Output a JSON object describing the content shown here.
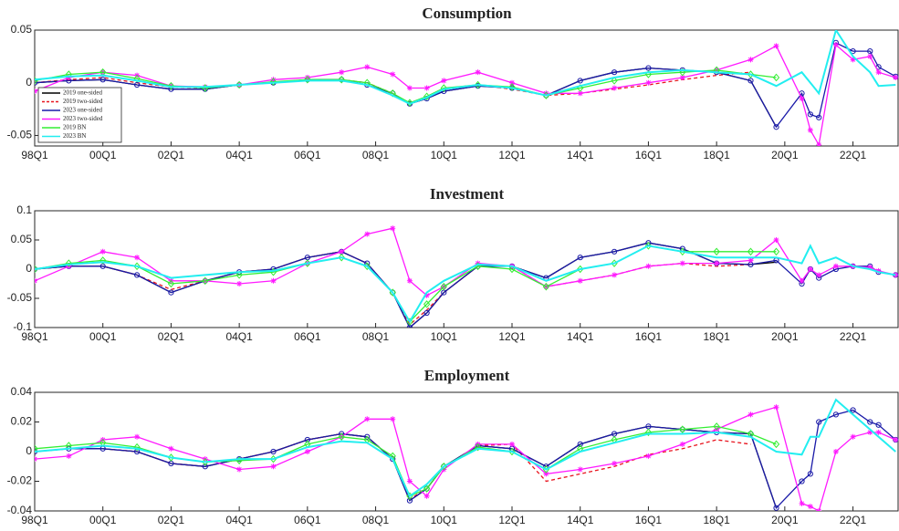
{
  "chart_data": [
    {
      "type": "line",
      "title": "Consumption",
      "legend": "lower left",
      "x": [
        1998,
        1999,
        2000,
        2001,
        2002,
        2003,
        2004,
        2005,
        2006,
        2007,
        2007.75,
        2008.5,
        2009,
        2009.5,
        2010,
        2011,
        2012,
        2013,
        2014,
        2015,
        2016,
        2017,
        2018,
        2019,
        2019.75,
        2020.5,
        2020.75,
        2021,
        2021.5,
        2022,
        2022.5,
        2022.75,
        2023.25
      ],
      "xlim": [
        1998,
        2023.35
      ],
      "xticks": [
        {
          "value": 1998,
          "label": "98Q1"
        },
        {
          "value": 2000,
          "label": "00Q1"
        },
        {
          "value": 2002,
          "label": "02Q1"
        },
        {
          "value": 2004,
          "label": "04Q1"
        },
        {
          "value": 2006,
          "label": "06Q1"
        },
        {
          "value": 2008,
          "label": "08Q1"
        },
        {
          "value": 2010,
          "label": "10Q1"
        },
        {
          "value": 2012,
          "label": "12Q1"
        },
        {
          "value": 2014,
          "label": "14Q1"
        },
        {
          "value": 2016,
          "label": "16Q1"
        },
        {
          "value": 2018,
          "label": "18Q1"
        },
        {
          "value": 2020,
          "label": "20Q1"
        },
        {
          "value": 2022,
          "label": "22Q1"
        }
      ],
      "ylim": [
        -0.06,
        0.05
      ],
      "yticks": [
        -0.05,
        0,
        0.05
      ],
      "series": [
        {
          "name": "2019 one-sided",
          "color": "#000000",
          "marker": "none",
          "dash": false,
          "values": [
            0,
            0.002,
            0.003,
            -0.002,
            -0.006,
            -0.006,
            -0.002,
            0,
            0.003,
            0.003,
            -0.002,
            -0.01,
            -0.02,
            -0.015,
            -0.008,
            -0.003,
            -0.005,
            -0.012,
            0.002,
            0.01,
            0.014,
            0.012,
            0.01,
            0.002,
            -0.042,
            null,
            null,
            null,
            null,
            null,
            null,
            null,
            null
          ]
        },
        {
          "name": "2019 two-sided",
          "color": "#e8141e",
          "marker": "none",
          "dash": true,
          "values": [
            0,
            0.003,
            0.005,
            0,
            -0.004,
            -0.005,
            -0.002,
            0,
            0.002,
            0.003,
            0,
            -0.01,
            -0.02,
            -0.014,
            -0.006,
            -0.002,
            -0.006,
            -0.012,
            -0.01,
            -0.006,
            -0.002,
            0.003,
            0.007,
            0.01,
            null,
            null,
            null,
            null,
            null,
            null,
            null,
            null,
            null
          ]
        },
        {
          "name": "2023 one-sided",
          "color": "#1a1aa8",
          "marker": "circle",
          "dash": false,
          "values": [
            0,
            0.002,
            0.003,
            -0.002,
            -0.006,
            -0.006,
            -0.002,
            0,
            0.003,
            0.003,
            -0.002,
            -0.01,
            -0.02,
            -0.015,
            -0.008,
            -0.003,
            -0.005,
            -0.012,
            0.002,
            0.01,
            0.014,
            0.012,
            0.01,
            0.002,
            -0.042,
            -0.01,
            -0.03,
            -0.033,
            0.038,
            0.03,
            0.03,
            0.015,
            0.006
          ]
        },
        {
          "name": "2023 two-sided",
          "color": "#ff1aff",
          "marker": "star",
          "dash": false,
          "values": [
            -0.008,
            0.005,
            0.01,
            0.007,
            -0.003,
            -0.004,
            -0.002,
            0.003,
            0.005,
            0.01,
            0.015,
            0.008,
            -0.005,
            -0.005,
            0.002,
            0.01,
            0,
            -0.01,
            -0.01,
            -0.005,
            0,
            0.005,
            0.012,
            0.022,
            0.035,
            -0.015,
            -0.045,
            -0.059,
            0.036,
            0.022,
            0.025,
            0.01,
            0.005
          ]
        },
        {
          "name": "2019 BN",
          "color": "#33ee33",
          "marker": "diamond",
          "dash": false,
          "values": [
            0.002,
            0.008,
            0.01,
            0.004,
            -0.003,
            -0.005,
            -0.002,
            0.001,
            0.003,
            0.003,
            0,
            -0.01,
            -0.019,
            -0.013,
            -0.005,
            -0.002,
            -0.004,
            -0.012,
            -0.005,
            0.002,
            0.008,
            0.01,
            0.012,
            0.008,
            0.005,
            null,
            null,
            null,
            null,
            null,
            null,
            null,
            null
          ]
        },
        {
          "name": "2023 BN",
          "color": "#22eef0",
          "marker": "none",
          "dash": false,
          "values": [
            0.003,
            0.006,
            0.007,
            0.002,
            -0.004,
            -0.004,
            -0.002,
            0,
            0.002,
            0.002,
            -0.002,
            -0.012,
            -0.02,
            -0.014,
            -0.006,
            -0.002,
            -0.005,
            -0.012,
            -0.003,
            0.005,
            0.01,
            0.012,
            0.01,
            0.008,
            -0.003,
            0.01,
            0,
            -0.01,
            0.05,
            0.025,
            0.01,
            -0.003,
            -0.002
          ]
        }
      ]
    },
    {
      "type": "line",
      "title": "Investment",
      "x": [
        1998,
        1999,
        2000,
        2001,
        2002,
        2003,
        2004,
        2005,
        2006,
        2007,
        2007.75,
        2008.5,
        2009,
        2009.5,
        2010,
        2011,
        2012,
        2013,
        2014,
        2015,
        2016,
        2017,
        2018,
        2019,
        2019.75,
        2020.5,
        2020.75,
        2021,
        2021.5,
        2022,
        2022.5,
        2022.75,
        2023.25
      ],
      "xlim": [
        1998,
        2023.35
      ],
      "xticks": [
        {
          "value": 1998,
          "label": "98Q1"
        },
        {
          "value": 2000,
          "label": "00Q1"
        },
        {
          "value": 2002,
          "label": "02Q1"
        },
        {
          "value": 2004,
          "label": "04Q1"
        },
        {
          "value": 2006,
          "label": "06Q1"
        },
        {
          "value": 2008,
          "label": "08Q1"
        },
        {
          "value": 2010,
          "label": "10Q1"
        },
        {
          "value": 2012,
          "label": "12Q1"
        },
        {
          "value": 2014,
          "label": "14Q1"
        },
        {
          "value": 2016,
          "label": "16Q1"
        },
        {
          "value": 2018,
          "label": "18Q1"
        },
        {
          "value": 2020,
          "label": "20Q1"
        },
        {
          "value": 2022,
          "label": "22Q1"
        }
      ],
      "ylim": [
        -0.1,
        0.1
      ],
      "yticks": [
        -0.1,
        -0.05,
        0,
        0.05,
        0.1
      ],
      "series": [
        {
          "color": "#000000",
          "marker": "none",
          "dash": false,
          "values": [
            0,
            0.005,
            0.005,
            -0.01,
            -0.04,
            -0.02,
            -0.005,
            0,
            0.02,
            0.03,
            0.01,
            -0.04,
            -0.1,
            -0.075,
            -0.04,
            0.005,
            0.005,
            -0.015,
            0.02,
            0.03,
            0.045,
            0.035,
            0.01,
            0.008,
            0.012,
            null,
            null,
            null,
            null,
            null,
            null,
            null,
            null
          ]
        },
        {
          "color": "#e8141e",
          "marker": "none",
          "dash": true,
          "values": [
            0,
            0.005,
            0.005,
            -0.01,
            -0.035,
            -0.02,
            -0.005,
            0,
            0.02,
            0.03,
            0.01,
            -0.04,
            -0.095,
            -0.07,
            -0.04,
            0.005,
            0.005,
            -0.03,
            -0.02,
            -0.01,
            0.005,
            0.01,
            0.005,
            0.008,
            null,
            null,
            null,
            null,
            null,
            null,
            null,
            null,
            null
          ]
        },
        {
          "color": "#1a1aa8",
          "marker": "circle",
          "dash": false,
          "values": [
            0,
            0.005,
            0.005,
            -0.01,
            -0.04,
            -0.02,
            -0.005,
            0,
            0.02,
            0.03,
            0.01,
            -0.04,
            -0.1,
            -0.075,
            -0.04,
            0.005,
            0.005,
            -0.015,
            0.02,
            0.03,
            0.045,
            0.035,
            0.01,
            0.008,
            0.015,
            -0.025,
            0,
            -0.015,
            0,
            0.005,
            0.005,
            -0.005,
            -0.01
          ]
        },
        {
          "color": "#ff1aff",
          "marker": "star",
          "dash": false,
          "values": [
            -0.02,
            0.005,
            0.03,
            0.02,
            -0.02,
            -0.02,
            -0.025,
            -0.02,
            0.01,
            0.03,
            0.06,
            0.07,
            -0.02,
            -0.045,
            -0.03,
            0.01,
            0.005,
            -0.03,
            -0.02,
            -0.01,
            0.005,
            0.01,
            0.01,
            0.015,
            0.05,
            -0.02,
            0,
            -0.01,
            0.005,
            0.005,
            0.003,
            -0.003,
            -0.01
          ]
        },
        {
          "color": "#33ee33",
          "marker": "diamond",
          "dash": false,
          "values": [
            0,
            0.01,
            0.015,
            0.005,
            -0.025,
            -0.02,
            -0.01,
            -0.005,
            0.01,
            0.02,
            0.005,
            -0.04,
            -0.09,
            -0.06,
            -0.03,
            0.005,
            0,
            -0.03,
            0,
            0.01,
            0.04,
            0.03,
            0.03,
            0.03,
            0.03,
            null,
            null,
            null,
            null,
            null,
            null,
            null,
            null
          ]
        },
        {
          "color": "#22eef0",
          "marker": "none",
          "dash": false,
          "values": [
            0,
            0.008,
            0.012,
            0.005,
            -0.015,
            -0.01,
            -0.005,
            -0.003,
            0.01,
            0.02,
            0.005,
            -0.04,
            -0.09,
            -0.04,
            -0.02,
            0.008,
            0.005,
            -0.02,
            0,
            0.01,
            0.04,
            0.03,
            0.02,
            0.02,
            0.02,
            0.01,
            0.04,
            0.01,
            0.02,
            0.005,
            0,
            -0.005,
            -0.01
          ]
        }
      ]
    },
    {
      "type": "line",
      "title": "Employment",
      "x": [
        1998,
        1999,
        2000,
        2001,
        2002,
        2003,
        2004,
        2005,
        2006,
        2007,
        2007.75,
        2008.5,
        2009,
        2009.5,
        2010,
        2011,
        2012,
        2013,
        2014,
        2015,
        2016,
        2017,
        2018,
        2019,
        2019.75,
        2020.5,
        2020.75,
        2021,
        2021.5,
        2022,
        2022.5,
        2022.75,
        2023.25
      ],
      "xlim": [
        1998,
        2023.35
      ],
      "xticks": [
        {
          "value": 1998,
          "label": "98Q1"
        },
        {
          "value": 2000,
          "label": "00Q1"
        },
        {
          "value": 2002,
          "label": "02Q1"
        },
        {
          "value": 2004,
          "label": "04Q1"
        },
        {
          "value": 2006,
          "label": "06Q1"
        },
        {
          "value": 2008,
          "label": "08Q1"
        },
        {
          "value": 2010,
          "label": "10Q1"
        },
        {
          "value": 2012,
          "label": "12Q1"
        },
        {
          "value": 2014,
          "label": "14Q1"
        },
        {
          "value": 2016,
          "label": "16Q1"
        },
        {
          "value": 2018,
          "label": "18Q1"
        },
        {
          "value": 2020,
          "label": "20Q1"
        },
        {
          "value": 2022,
          "label": "22Q1"
        }
      ],
      "ylim": [
        -0.04,
        0.04
      ],
      "yticks": [
        -0.04,
        -0.02,
        0,
        0.02,
        0.04
      ],
      "series": [
        {
          "color": "#000000",
          "marker": "none",
          "dash": false,
          "values": [
            0,
            0.002,
            0.002,
            0,
            -0.008,
            -0.01,
            -0.005,
            0,
            0.008,
            0.012,
            0.01,
            -0.005,
            -0.033,
            -0.025,
            -0.01,
            0.004,
            0.002,
            -0.01,
            0.005,
            0.012,
            0.017,
            0.015,
            0.013,
            0.012,
            -0.038,
            null,
            null,
            null,
            null,
            null,
            null,
            null,
            null
          ]
        },
        {
          "color": "#e8141e",
          "marker": "none",
          "dash": true,
          "values": [
            0,
            0.002,
            0.002,
            0,
            -0.008,
            -0.01,
            -0.005,
            0,
            0.008,
            0.012,
            0.01,
            -0.005,
            -0.032,
            -0.025,
            -0.01,
            0.004,
            0.005,
            -0.02,
            -0.015,
            -0.01,
            -0.002,
            0.002,
            0.008,
            0.005,
            null,
            null,
            null,
            null,
            null,
            null,
            null,
            null,
            null
          ]
        },
        {
          "color": "#1a1aa8",
          "marker": "circle",
          "dash": false,
          "values": [
            0,
            0.002,
            0.002,
            0,
            -0.008,
            -0.01,
            -0.005,
            0,
            0.008,
            0.012,
            0.01,
            -0.005,
            -0.033,
            -0.025,
            -0.01,
            0.004,
            0.002,
            -0.01,
            0.005,
            0.012,
            0.017,
            0.015,
            0.013,
            0.012,
            -0.038,
            -0.02,
            -0.015,
            0.02,
            0.025,
            0.028,
            0.02,
            0.018,
            0.008
          ]
        },
        {
          "color": "#ff1aff",
          "marker": "star",
          "dash": false,
          "values": [
            -0.005,
            -0.003,
            0.008,
            0.01,
            0.002,
            -0.005,
            -0.012,
            -0.01,
            0,
            0.01,
            0.022,
            0.022,
            -0.02,
            -0.03,
            -0.012,
            0.005,
            0.005,
            -0.015,
            -0.012,
            -0.008,
            -0.003,
            0.005,
            0.015,
            0.025,
            0.03,
            -0.035,
            -0.037,
            -0.04,
            0,
            0.01,
            0.013,
            0.013,
            0.008
          ]
        },
        {
          "color": "#33ee33",
          "marker": "diamond",
          "dash": false,
          "values": [
            0.002,
            0.004,
            0.006,
            0.003,
            -0.004,
            -0.007,
            -0.006,
            -0.005,
            0.005,
            0.01,
            0.008,
            -0.003,
            -0.03,
            -0.025,
            -0.01,
            0.003,
            0,
            -0.012,
            0.002,
            0.008,
            0.013,
            0.015,
            0.017,
            0.012,
            0.005,
            null,
            null,
            null,
            null,
            null,
            null,
            null,
            null
          ]
        },
        {
          "color": "#22eef0",
          "marker": "none",
          "dash": false,
          "values": [
            0,
            0.002,
            0.004,
            0.002,
            -0.004,
            -0.007,
            -0.005,
            -0.005,
            0.003,
            0.007,
            0.006,
            -0.005,
            -0.03,
            -0.022,
            -0.01,
            0.002,
            0,
            -0.012,
            0,
            0.006,
            0.012,
            0.012,
            0.013,
            0.01,
            0,
            -0.002,
            0.01,
            0.01,
            0.035,
            0.025,
            0.015,
            0.01,
            0
          ]
        }
      ]
    }
  ]
}
